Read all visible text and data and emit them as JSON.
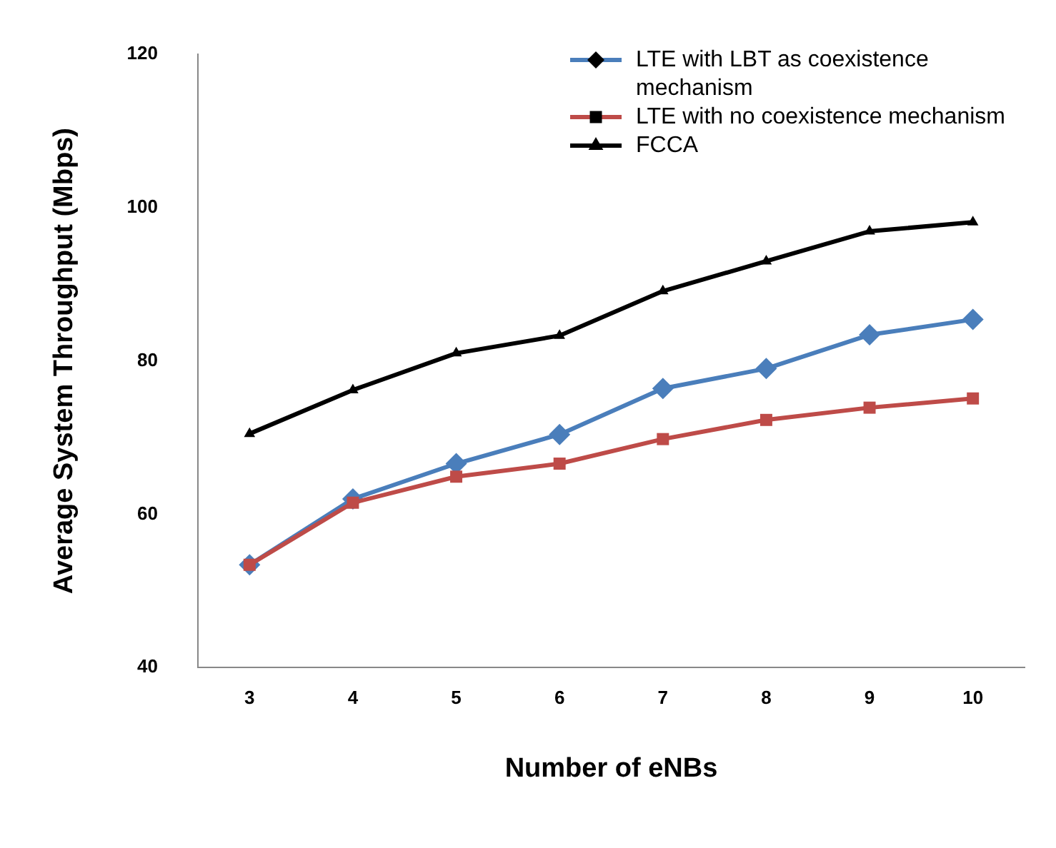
{
  "chart_data": {
    "type": "line",
    "xlabel": "Number of eNBs",
    "ylabel": "Average System Throughput (Mbps)",
    "categories": [
      "3",
      "4",
      "5",
      "6",
      "7",
      "8",
      "9",
      "10"
    ],
    "ylim": [
      40,
      120
    ],
    "yticks": [
      40,
      60,
      80,
      100,
      120
    ],
    "grid": false,
    "legend": "top right",
    "line_style": "solid",
    "series": [
      {
        "name": "LTE with LBT as coexistence mechanism",
        "color": "#4a7ebb",
        "marker": "diamond",
        "values": [
          53.4,
          62.0,
          66.6,
          70.4,
          76.4,
          79.0,
          83.4,
          85.4
        ]
      },
      {
        "name": "LTE with no coexistence mechanism",
        "color": "#be4b48",
        "marker": "square",
        "values": [
          53.4,
          61.5,
          64.9,
          66.6,
          69.8,
          72.3,
          73.9,
          75.1
        ]
      },
      {
        "name": "FCCA",
        "color": "#000000",
        "marker": "triangle",
        "values": [
          70.5,
          76.2,
          81.0,
          83.3,
          89.1,
          93.0,
          96.9,
          98.1
        ]
      }
    ]
  }
}
